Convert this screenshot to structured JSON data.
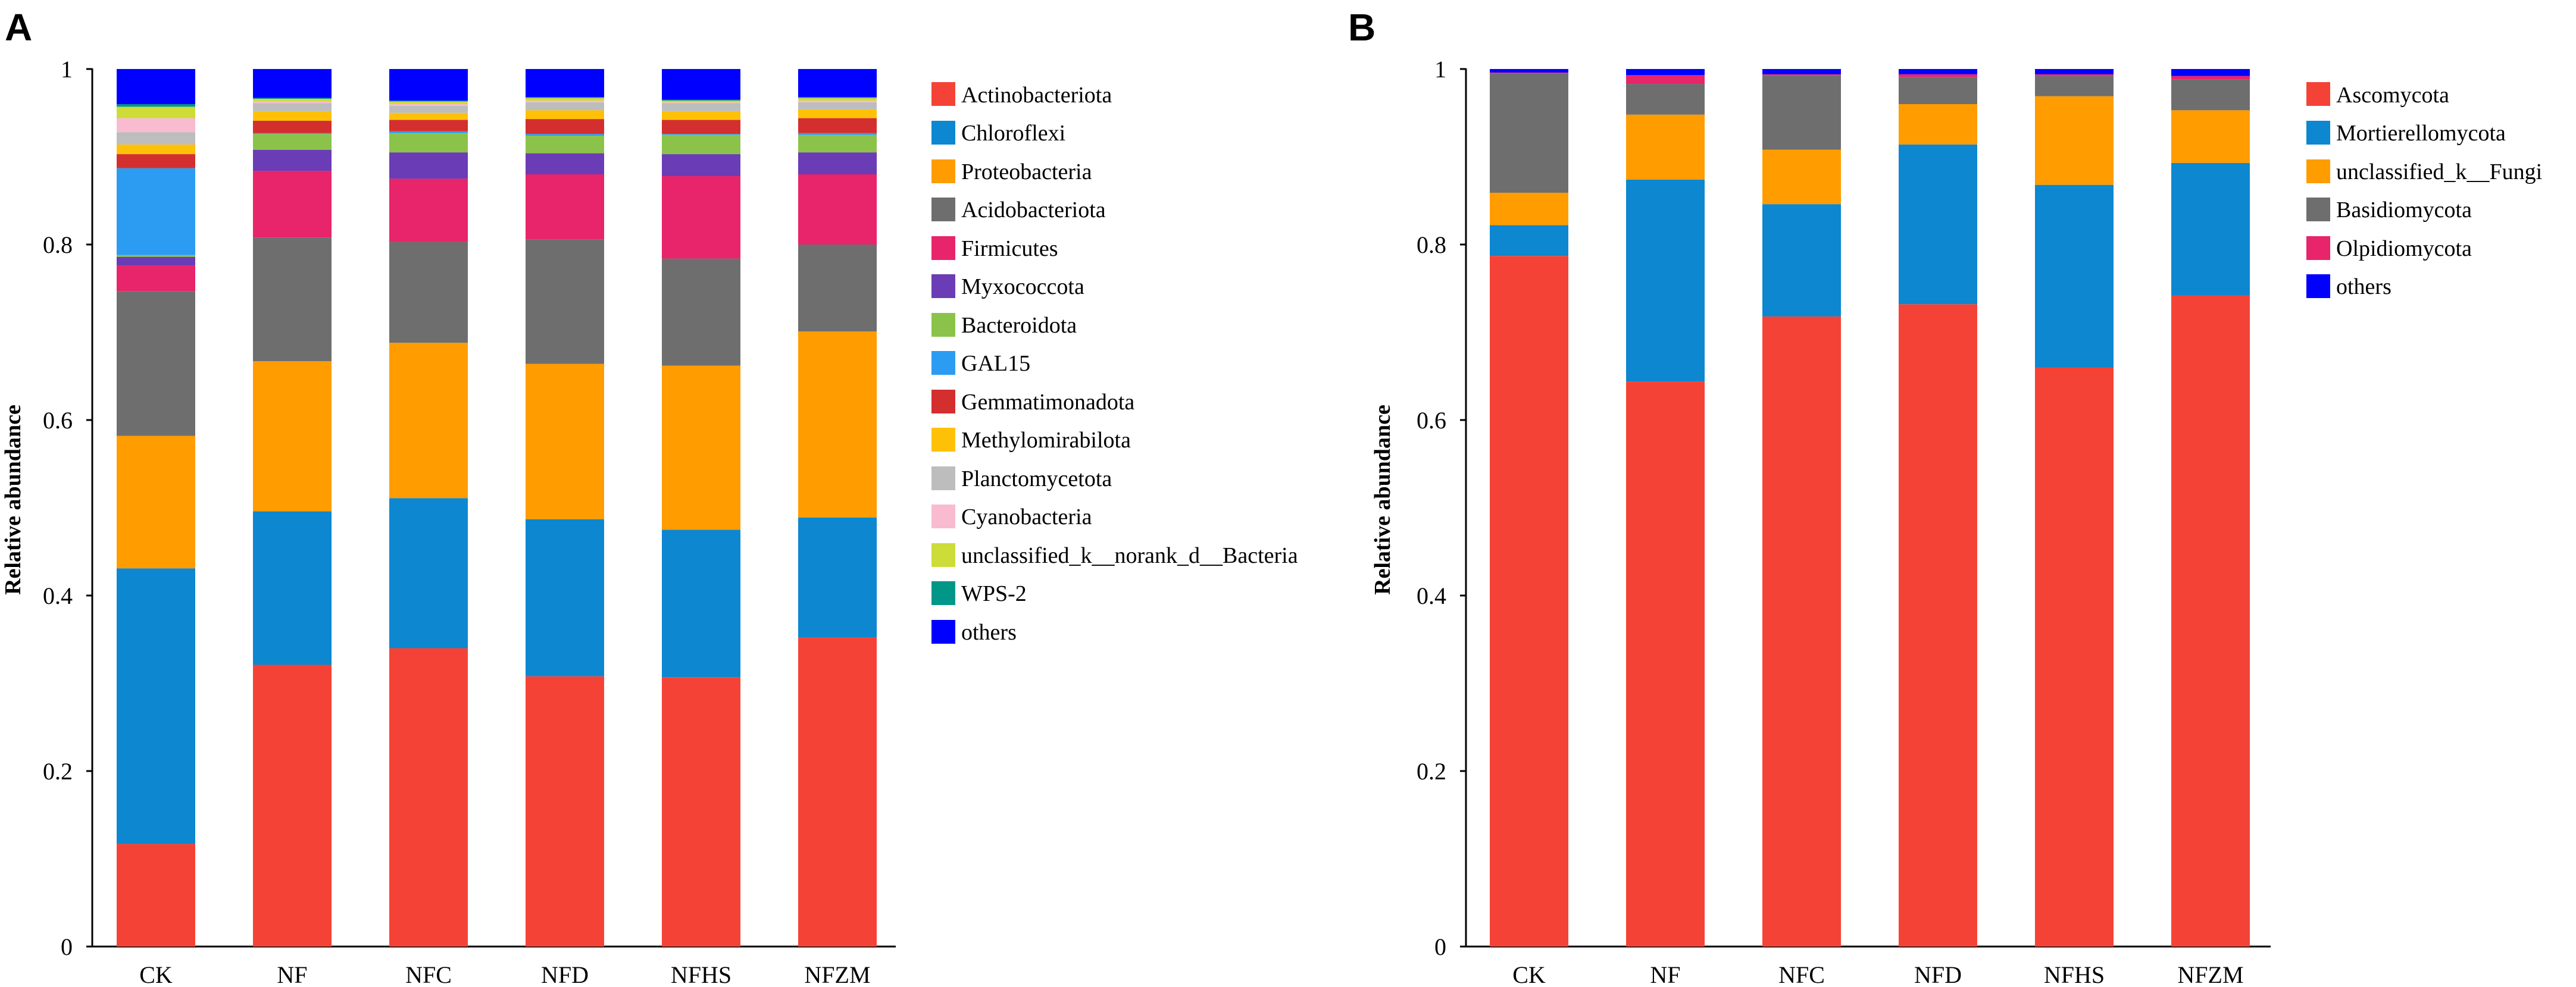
{
  "chart_data": [
    {
      "panel_label": "A",
      "type": "bar",
      "stacked": true,
      "title": "",
      "xlabel": "",
      "ylabel": "Relative abundance",
      "ylim": [
        0,
        1
      ],
      "yticks": [
        "0",
        "0.2",
        "0.4",
        "0.6",
        "0.8",
        "1"
      ],
      "categories": [
        "CK",
        "NF",
        "NFC",
        "NFD",
        "NFHS",
        "NFZM"
      ],
      "legend_position": "right",
      "series": [
        {
          "name": "Actinobacteriota",
          "color": "#f44336",
          "values": [
            0.117,
            0.321,
            0.34,
            0.308,
            0.307,
            0.352
          ]
        },
        {
          "name": "Chloroflexi",
          "color": "#0c87d0",
          "values": [
            0.314,
            0.175,
            0.171,
            0.179,
            0.168,
            0.137
          ]
        },
        {
          "name": "Proteobacteria",
          "color": "#ff9c00",
          "values": [
            0.151,
            0.171,
            0.177,
            0.177,
            0.187,
            0.212
          ]
        },
        {
          "name": "Acidobacteriota",
          "color": "#6e6e6e",
          "values": [
            0.165,
            0.141,
            0.115,
            0.142,
            0.122,
            0.099
          ]
        },
        {
          "name": "Firmicutes",
          "color": "#e8246a",
          "values": [
            0.029,
            0.076,
            0.072,
            0.074,
            0.094,
            0.08
          ]
        },
        {
          "name": "Myxococcota",
          "color": "#6a3cb5",
          "values": [
            0.01,
            0.024,
            0.03,
            0.024,
            0.025,
            0.025
          ]
        },
        {
          "name": "Bacteroidota",
          "color": "#8bc34a",
          "values": [
            0.002,
            0.018,
            0.022,
            0.02,
            0.022,
            0.02
          ]
        },
        {
          "name": "GAL15",
          "color": "#2b9cf2",
          "values": [
            0.099,
            0.001,
            0.002,
            0.002,
            0.001,
            0.002
          ]
        },
        {
          "name": "Gemmatimonadota",
          "color": "#d32f2f",
          "values": [
            0.016,
            0.014,
            0.013,
            0.017,
            0.016,
            0.017
          ]
        },
        {
          "name": "Methylomirabilota",
          "color": "#ffc107",
          "values": [
            0.011,
            0.011,
            0.008,
            0.01,
            0.01,
            0.01
          ]
        },
        {
          "name": "Planctomycetota",
          "color": "#bdbdbd",
          "values": [
            0.014,
            0.009,
            0.008,
            0.009,
            0.009,
            0.008
          ]
        },
        {
          "name": "Cyanobacteria",
          "color": "#f8bbd0",
          "values": [
            0.016,
            0.002,
            0.002,
            0.002,
            0.001,
            0.002
          ]
        },
        {
          "name": "unclassified_k__norank_d__Bacteria",
          "color": "#cddc39",
          "values": [
            0.013,
            0.003,
            0.003,
            0.003,
            0.002,
            0.003
          ]
        },
        {
          "name": "WPS-2",
          "color": "#009688",
          "values": [
            0.003,
            0.001,
            0.001,
            0.001,
            0.001,
            0.001
          ]
        },
        {
          "name": "others",
          "color": "#0000ff",
          "values": [
            0.04,
            0.033,
            0.036,
            0.032,
            0.035,
            0.032
          ]
        }
      ]
    },
    {
      "panel_label": "B",
      "type": "bar",
      "stacked": true,
      "title": "",
      "xlabel": "",
      "ylabel": "Relative abundance",
      "ylim": [
        0,
        1
      ],
      "yticks": [
        "0",
        "0.2",
        "0.4",
        "0.6",
        "0.8",
        "1"
      ],
      "categories": [
        "CK",
        "NF",
        "NFC",
        "NFD",
        "NFHS",
        "NFZM"
      ],
      "legend_position": "right",
      "series": [
        {
          "name": "Ascomycota",
          "color": "#f44336",
          "values": [
            0.787,
            0.644,
            0.718,
            0.732,
            0.66,
            0.742
          ]
        },
        {
          "name": "Mortierellomycota",
          "color": "#0c87d0",
          "values": [
            0.035,
            0.23,
            0.128,
            0.182,
            0.208,
            0.151
          ]
        },
        {
          "name": "unclassified_k__Fungi",
          "color": "#ff9c00",
          "values": [
            0.037,
            0.074,
            0.062,
            0.046,
            0.101,
            0.06
          ]
        },
        {
          "name": "Basidiomycota",
          "color": "#6e6e6e",
          "values": [
            0.136,
            0.035,
            0.085,
            0.031,
            0.023,
            0.035
          ]
        },
        {
          "name": "Olpidiomycota",
          "color": "#e8246a",
          "values": [
            0.001,
            0.01,
            0.001,
            0.003,
            0.002,
            0.004
          ]
        },
        {
          "name": "others",
          "color": "#0000ff",
          "values": [
            0.004,
            0.007,
            0.006,
            0.006,
            0.006,
            0.008
          ]
        }
      ]
    }
  ]
}
